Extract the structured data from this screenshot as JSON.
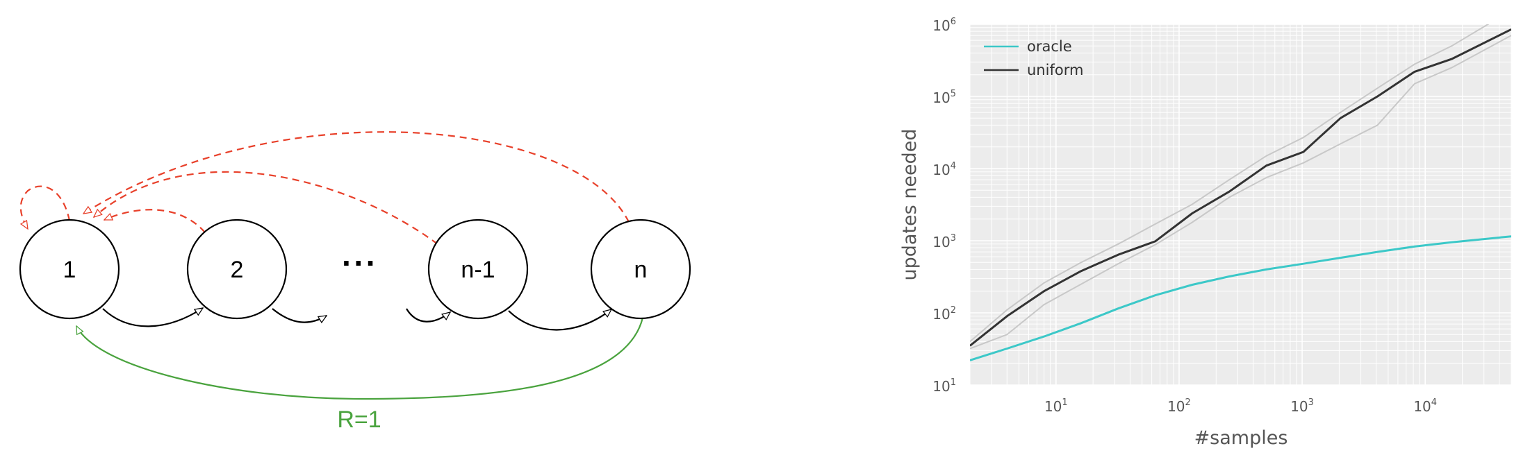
{
  "diagram": {
    "nodes": [
      {
        "id": "n1",
        "label": "1"
      },
      {
        "id": "n2",
        "label": "2"
      },
      {
        "id": "nm1",
        "label": "n-1"
      },
      {
        "id": "nn",
        "label": "n"
      }
    ],
    "ellipsis": "···",
    "reward_label": "R=1",
    "colors": {
      "forward": "#000000",
      "reset": "#e8402a",
      "reward": "#4aa33e"
    }
  },
  "chart_data": {
    "type": "line",
    "xlabel": "#samples",
    "ylabel": "updates needed",
    "xscale": "log",
    "yscale": "log",
    "xlim": [
      2,
      50000
    ],
    "ylim": [
      10,
      1000000
    ],
    "x_ticks": [
      {
        "base": "10",
        "exp": "1"
      },
      {
        "base": "10",
        "exp": "2"
      },
      {
        "base": "10",
        "exp": "3"
      },
      {
        "base": "10",
        "exp": "4"
      }
    ],
    "y_ticks": [
      {
        "base": "10",
        "exp": "1"
      },
      {
        "base": "10",
        "exp": "2"
      },
      {
        "base": "10",
        "exp": "3"
      },
      {
        "base": "10",
        "exp": "4"
      },
      {
        "base": "10",
        "exp": "5"
      },
      {
        "base": "10",
        "exp": "6"
      }
    ],
    "grid": true,
    "legend_position": "top-left",
    "series": [
      {
        "name": "oracle",
        "color": "#3cc8c8",
        "x": [
          2,
          4,
          8,
          16,
          32,
          64,
          128,
          256,
          512,
          1024,
          2048,
          4096,
          8192,
          16384,
          50000
        ],
        "y": [
          22,
          32,
          47,
          72,
          115,
          175,
          245,
          320,
          400,
          480,
          580,
          700,
          830,
          950,
          1150
        ]
      },
      {
        "name": "uniform",
        "color": "#333333",
        "x": [
          2,
          4,
          8,
          16,
          32,
          64,
          128,
          256,
          512,
          1024,
          2048,
          4096,
          8192,
          16384,
          50000
        ],
        "y": [
          35,
          90,
          200,
          380,
          640,
          980,
          2400,
          4800,
          11000,
          17000,
          50000,
          100000,
          220000,
          330000,
          850000
        ]
      }
    ],
    "bands": [
      {
        "name": "",
        "color": "#c8c8c8",
        "x": [
          2,
          4,
          8,
          16,
          32,
          64,
          128,
          256,
          512,
          1024,
          2048,
          4096,
          8192,
          16384,
          50000
        ],
        "y": [
          40,
          110,
          260,
          500,
          900,
          1700,
          3200,
          7000,
          15000,
          27000,
          60000,
          130000,
          280000,
          500000,
          1900000
        ]
      },
      {
        "name": "",
        "color": "#c8c8c8",
        "x": [
          2,
          4,
          8,
          16,
          32,
          64,
          128,
          256,
          512,
          1024,
          2048,
          4096,
          8192,
          16384,
          50000
        ],
        "y": [
          32,
          50,
          130,
          250,
          480,
          880,
          1800,
          4000,
          7500,
          12000,
          22000,
          40000,
          150000,
          250000,
          700000
        ]
      }
    ]
  }
}
